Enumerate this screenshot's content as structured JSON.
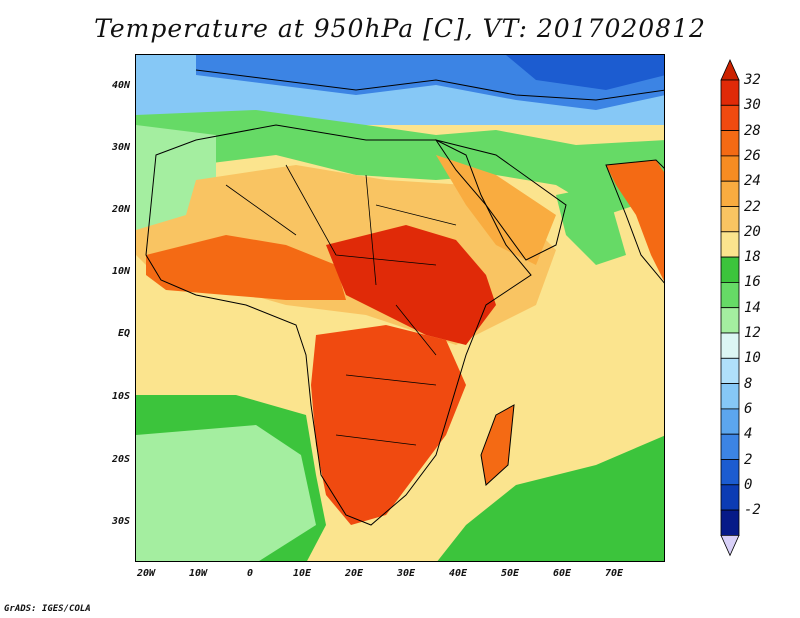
{
  "title": "Temperature at 950hPa [C], VT: 2017020812",
  "footer": "GrADS: IGES/COLA",
  "lat_labels": [
    "40N",
    "30N",
    "20N",
    "10N",
    "EQ",
    "10S",
    "20S",
    "30S"
  ],
  "lon_labels": [
    "20W",
    "10W",
    "0",
    "10E",
    "20E",
    "30E",
    "40E",
    "50E",
    "60E",
    "70E"
  ],
  "colorbar": {
    "labels": [
      "32",
      "30",
      "28",
      "26",
      "24",
      "22",
      "20",
      "18",
      "16",
      "14",
      "12",
      "10",
      "8",
      "6",
      "4",
      "2",
      "0",
      "-2"
    ],
    "colors": [
      "#e02a08",
      "#f04a10",
      "#f46a14",
      "#f78c22",
      "#f9ac40",
      "#f9c462",
      "#fbe48e",
      "#3cc43c",
      "#66da66",
      "#a4eea0",
      "#dcf6f4",
      "#b0e0fa",
      "#86c8f6",
      "#5ca6ee",
      "#3c84e4",
      "#1c5cd0",
      "#0c3cb4",
      "#061a88"
    ],
    "over_color": "#cc2200",
    "under_color": "#d8d0f8"
  },
  "map_colors": {
    "mediterranean": "#5ca6ee",
    "europe": "#3c84e4",
    "north_africa": "#a4eea0",
    "ocean_north": "#66da66",
    "sahel": "#f9c462",
    "hot": "#e02a08",
    "warm": "#f46a14",
    "south_ocean": "#3cc43c",
    "india": "#f46a14",
    "boundary": "#000000"
  }
}
